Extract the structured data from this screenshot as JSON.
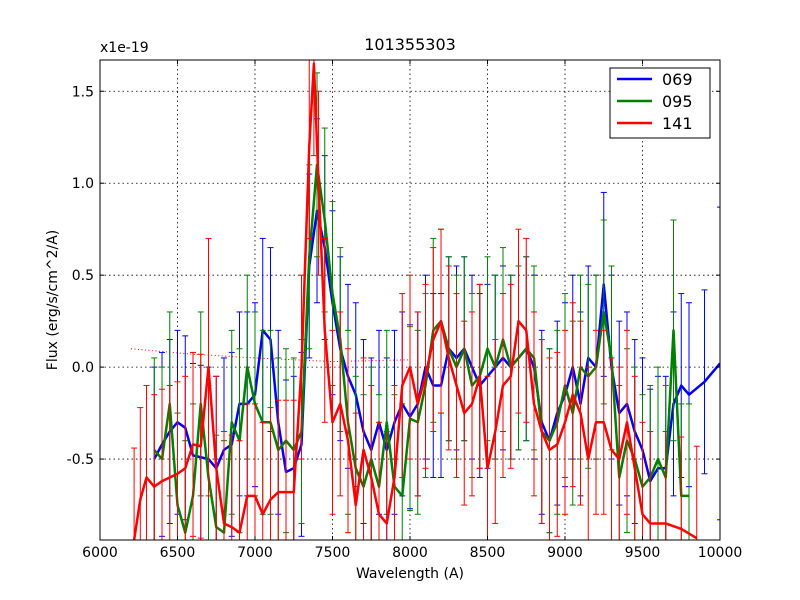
{
  "chart_data": {
    "type": "line",
    "title": "101355303",
    "xlabel": "Wavelength (A)",
    "ylabel": "Flux (erg/s/cm^2/A)",
    "offset_label": "x1e-19",
    "xlim": [
      6000,
      10000
    ],
    "ylim": [
      -0.94,
      1.67
    ],
    "grid": true,
    "legend_position": "top-right",
    "x_ticks": [
      "6000",
      "6500",
      "7000",
      "7500",
      "8000",
      "8500",
      "9000",
      "9500",
      "10000"
    ],
    "x_tick_values": [
      6000,
      6500,
      7000,
      7500,
      8000,
      8500,
      9000,
      9500,
      10000
    ],
    "y_ticks": [
      "-0.5",
      "0.0",
      "0.5",
      "1.0",
      "1.5"
    ],
    "y_tick_values": [
      -0.5,
      0.0,
      0.5,
      1.0,
      1.5
    ],
    "series": [
      {
        "name": "069",
        "color": "#0000ff",
        "x": [
          6350,
          6400,
          6450,
          6500,
          6550,
          6600,
          6650,
          6700,
          6750,
          6800,
          6850,
          6900,
          6950,
          7000,
          7050,
          7100,
          7150,
          7200,
          7250,
          7300,
          7350,
          7400,
          7450,
          7500,
          7550,
          7600,
          7650,
          7700,
          7750,
          7800,
          7850,
          7900,
          7950,
          8000,
          8050,
          8100,
          8150,
          8200,
          8250,
          8300,
          8350,
          8400,
          8450,
          8500,
          8550,
          8600,
          8650,
          8700,
          8750,
          8800,
          8850,
          8900,
          8950,
          9000,
          9050,
          9100,
          9150,
          9200,
          9250,
          9300,
          9350,
          9400,
          9450,
          9500,
          9550,
          9600,
          9650,
          9700,
          9750,
          9800,
          9900,
          10000
        ],
        "y": [
          -0.5,
          -0.42,
          -0.35,
          -0.3,
          -0.33,
          -0.48,
          -0.49,
          -0.5,
          -0.55,
          -0.45,
          -0.42,
          -0.2,
          -0.2,
          -0.15,
          0.2,
          0.15,
          -0.3,
          -0.57,
          -0.55,
          -0.42,
          0.55,
          0.85,
          0.65,
          0.35,
          0.1,
          -0.05,
          -0.15,
          -0.35,
          -0.45,
          -0.3,
          -0.45,
          -0.3,
          -0.2,
          -0.27,
          -0.2,
          0.0,
          -0.1,
          -0.1,
          0.1,
          0.05,
          0.1,
          0.0,
          -0.1,
          -0.05,
          0.0,
          0.05,
          0.0,
          0.05,
          0.1,
          0.0,
          -0.3,
          -0.4,
          -0.25,
          -0.15,
          0.0,
          -0.2,
          0.05,
          0.0,
          0.45,
          0.0,
          -0.25,
          -0.2,
          -0.35,
          -0.45,
          -0.62,
          -0.55,
          -0.55,
          -0.2,
          -0.1,
          -0.15,
          -0.08,
          0.02
        ],
        "yerr": [
          0.5,
          0.5,
          0.5,
          0.5,
          0.5,
          0.5,
          0.5,
          0.5,
          0.5,
          0.5,
          0.5,
          0.5,
          0.5,
          0.5,
          0.5,
          0.5,
          0.5,
          0.5,
          0.5,
          0.5,
          0.5,
          0.5,
          0.5,
          0.5,
          0.5,
          0.5,
          0.5,
          0.5,
          0.5,
          0.5,
          0.5,
          0.5,
          0.5,
          0.5,
          0.5,
          0.5,
          0.5,
          0.5,
          0.5,
          0.5,
          0.5,
          0.5,
          0.5,
          0.5,
          0.5,
          0.5,
          0.5,
          0.5,
          0.5,
          0.5,
          0.5,
          0.5,
          0.5,
          0.5,
          0.5,
          0.5,
          0.5,
          0.5,
          0.5,
          0.5,
          0.5,
          0.5,
          0.5,
          0.5,
          0.5,
          0.5,
          0.5,
          0.5,
          0.5,
          0.5,
          0.5,
          0.85
        ]
      },
      {
        "name": "095",
        "color": "#008000",
        "x": [
          6350,
          6400,
          6450,
          6500,
          6550,
          6600,
          6650,
          6700,
          6750,
          6800,
          6850,
          6900,
          6950,
          7000,
          7050,
          7100,
          7150,
          7200,
          7250,
          7300,
          7350,
          7400,
          7450,
          7500,
          7550,
          7600,
          7650,
          7700,
          7750,
          7800,
          7850,
          7900,
          7950,
          8000,
          8050,
          8100,
          8150,
          8200,
          8250,
          8300,
          8350,
          8400,
          8450,
          8500,
          8550,
          8600,
          8650,
          8700,
          8750,
          8800,
          8850,
          8900,
          8950,
          9000,
          9050,
          9100,
          9150,
          9200,
          9250,
          9300,
          9350,
          9400,
          9450,
          9500,
          9550,
          9600,
          9650,
          9700,
          9750,
          9800
        ],
        "y": [
          -0.45,
          -0.5,
          -0.2,
          -0.75,
          -0.9,
          -0.7,
          -0.2,
          -0.6,
          -0.87,
          -0.9,
          -0.3,
          -0.4,
          0.0,
          -0.2,
          -0.3,
          -0.3,
          -0.45,
          -0.4,
          -0.45,
          -0.35,
          0.6,
          1.1,
          0.8,
          0.4,
          0.15,
          -0.3,
          -0.55,
          -0.65,
          -0.5,
          -0.65,
          -0.3,
          -0.65,
          -0.7,
          -0.28,
          -0.3,
          -0.1,
          0.2,
          0.25,
          0.1,
          0.0,
          0.1,
          -0.1,
          -0.05,
          0.1,
          0.0,
          0.15,
          0.0,
          0.05,
          0.1,
          0.05,
          -0.35,
          -0.4,
          -0.3,
          -0.1,
          -0.25,
          0.0,
          -0.05,
          0.0,
          0.3,
          0.05,
          -0.6,
          -0.4,
          -0.5,
          -0.65,
          -0.6,
          -0.5,
          -0.6,
          0.2,
          -0.7,
          -0.7
        ],
        "yerr": [
          0.5,
          0.5,
          0.5,
          0.5,
          0.5,
          0.5,
          0.5,
          0.5,
          0.5,
          0.5,
          0.5,
          0.5,
          0.5,
          0.5,
          0.5,
          0.5,
          0.5,
          0.5,
          0.5,
          0.5,
          0.5,
          0.5,
          0.5,
          0.5,
          0.5,
          0.5,
          0.5,
          0.5,
          0.5,
          0.5,
          0.5,
          0.5,
          0.5,
          0.5,
          0.5,
          0.5,
          0.5,
          0.5,
          0.5,
          0.5,
          0.5,
          0.5,
          0.5,
          0.5,
          0.5,
          0.5,
          0.5,
          0.5,
          0.5,
          0.5,
          0.5,
          0.5,
          0.5,
          0.5,
          0.5,
          0.5,
          0.5,
          0.5,
          0.5,
          0.5,
          0.5,
          0.5,
          0.5,
          0.5,
          0.5,
          0.5,
          0.5,
          0.6,
          0.5,
          0.5
        ]
      },
      {
        "name": "141",
        "color": "#ff0000",
        "x": [
          6220,
          6260,
          6300,
          6350,
          6400,
          6450,
          6500,
          6550,
          6600,
          6650,
          6700,
          6750,
          6800,
          6850,
          6900,
          6950,
          7000,
          7050,
          7100,
          7150,
          7200,
          7250,
          7300,
          7350,
          7380,
          7410,
          7450,
          7500,
          7550,
          7600,
          7650,
          7700,
          7750,
          7800,
          7850,
          7900,
          7950,
          8000,
          8050,
          8100,
          8150,
          8200,
          8250,
          8300,
          8350,
          8400,
          8450,
          8500,
          8550,
          8600,
          8650,
          8700,
          8750,
          8800,
          8850,
          8900,
          8950,
          9000,
          9050,
          9100,
          9150,
          9200,
          9250,
          9300,
          9350,
          9400,
          9450,
          9500,
          9550,
          9650,
          9750,
          9850
        ],
        "y": [
          -0.94,
          -0.72,
          -0.6,
          -0.65,
          -0.62,
          -0.6,
          -0.58,
          -0.55,
          -0.42,
          -0.43,
          0.0,
          -0.55,
          -0.85,
          -0.87,
          -0.9,
          -0.7,
          -0.7,
          -0.8,
          -0.72,
          -0.68,
          -0.68,
          -0.68,
          0.0,
          1.2,
          1.65,
          1.0,
          0.2,
          -0.3,
          -0.2,
          -0.4,
          -0.75,
          -0.45,
          -0.6,
          -0.8,
          -0.85,
          -0.6,
          -0.1,
          0.0,
          -0.2,
          -0.05,
          0.15,
          0.25,
          0.05,
          -0.1,
          -0.25,
          -0.2,
          -0.05,
          -0.55,
          -0.35,
          -0.1,
          -0.05,
          0.25,
          0.2,
          -0.2,
          -0.35,
          -0.45,
          -0.42,
          -0.3,
          -0.15,
          -0.25,
          -0.5,
          -0.3,
          -0.3,
          -0.45,
          -0.5,
          -0.3,
          -0.55,
          -0.8,
          -0.85,
          -0.85,
          -0.88,
          -0.93
        ],
        "yerr": [
          0.5,
          0.5,
          0.5,
          0.5,
          0.5,
          0.5,
          0.5,
          0.5,
          0.5,
          0.5,
          0.7,
          0.5,
          0.5,
          0.5,
          0.5,
          0.5,
          0.5,
          0.5,
          0.5,
          0.5,
          0.5,
          0.5,
          0.5,
          0.5,
          0.5,
          0.5,
          0.5,
          0.5,
          0.5,
          0.5,
          0.5,
          0.5,
          0.5,
          0.5,
          0.5,
          0.5,
          0.5,
          0.5,
          0.5,
          0.5,
          0.5,
          0.5,
          0.5,
          0.5,
          0.5,
          0.5,
          0.5,
          0.5,
          0.5,
          0.5,
          0.5,
          0.5,
          0.5,
          0.5,
          0.5,
          0.5,
          0.5,
          0.5,
          0.5,
          0.5,
          0.5,
          0.5,
          0.5,
          0.5,
          0.5,
          0.5,
          0.5,
          0.5,
          0.5,
          0.5,
          0.5,
          0.5
        ]
      }
    ],
    "dotted_reference": {
      "color": "#ff0000",
      "x": [
        6200,
        6600,
        7000,
        7500,
        8000
      ],
      "y": [
        0.1,
        0.07,
        0.05,
        0.03,
        0.04
      ]
    }
  }
}
